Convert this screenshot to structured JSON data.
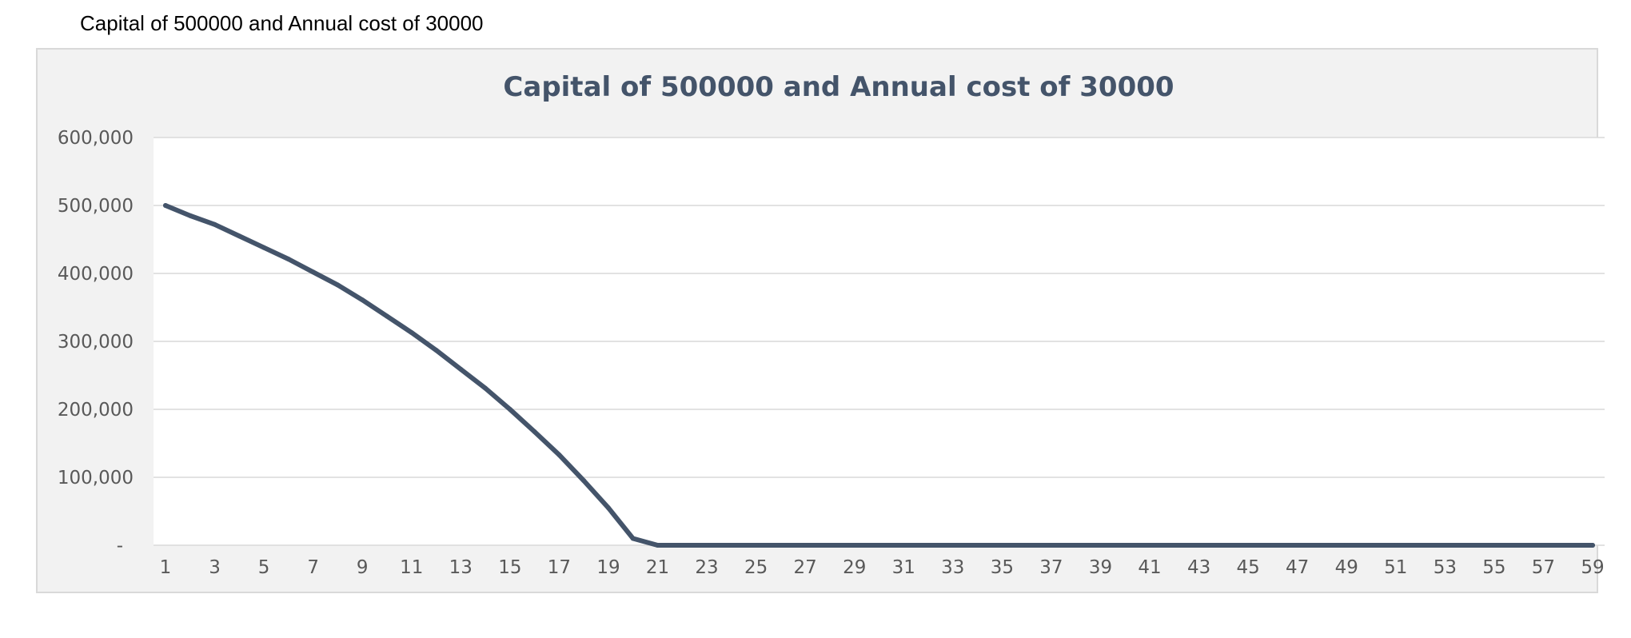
{
  "sheet_label": "Capital of 500000 and Annual cost of 30000",
  "colors": {
    "line": "#44546a",
    "title": "#44546a",
    "plot_area": "#ffffff",
    "chart_area": "#f2f2f2",
    "gridline": "#d9d9d9",
    "tick_text": "#595959"
  },
  "chart_data": {
    "type": "line",
    "title": "Capital of 500000 and Annual cost of 30000",
    "xlabel": "",
    "ylabel": "",
    "grid": true,
    "legend": "none",
    "ylim": [
      0,
      600000
    ],
    "yticks": [
      {
        "value": 0,
        "label": "-"
      },
      {
        "value": 100000,
        "label": "100,000"
      },
      {
        "value": 200000,
        "label": "200,000"
      },
      {
        "value": 300000,
        "label": "300,000"
      },
      {
        "value": 400000,
        "label": "400,000"
      },
      {
        "value": 500000,
        "label": "500,000"
      },
      {
        "value": 600000,
        "label": "600,000"
      }
    ],
    "x": [
      1,
      2,
      3,
      4,
      5,
      6,
      7,
      8,
      9,
      10,
      11,
      12,
      13,
      14,
      15,
      16,
      17,
      18,
      19,
      20,
      21,
      22,
      23,
      24,
      25,
      26,
      27,
      28,
      29,
      30,
      31,
      32,
      33,
      34,
      35,
      36,
      37,
      38,
      39,
      40,
      41,
      42,
      43,
      44,
      45,
      46,
      47,
      48,
      49,
      50,
      51,
      52,
      53,
      54,
      55,
      56,
      57,
      58,
      59
    ],
    "x_tick_labels": [
      "1",
      "3",
      "5",
      "7",
      "9",
      "11",
      "13",
      "15",
      "17",
      "19",
      "21",
      "23",
      "25",
      "27",
      "29",
      "31",
      "33",
      "35",
      "37",
      "39",
      "41",
      "43",
      "45",
      "47",
      "49",
      "51",
      "53",
      "55",
      "57",
      "59"
    ],
    "series": [
      {
        "values": [
          500000,
          485000,
          472000,
          455000,
          438000,
          421000,
          402000,
          383000,
          361000,
          337000,
          313000,
          287000,
          259000,
          231000,
          200000,
          167000,
          133000,
          95000,
          55000,
          10000,
          0,
          0,
          0,
          0,
          0,
          0,
          0,
          0,
          0,
          0,
          0,
          0,
          0,
          0,
          0,
          0,
          0,
          0,
          0,
          0,
          0,
          0,
          0,
          0,
          0,
          0,
          0,
          0,
          0,
          0,
          0,
          0,
          0,
          0,
          0,
          0,
          0,
          0,
          0
        ]
      }
    ]
  }
}
